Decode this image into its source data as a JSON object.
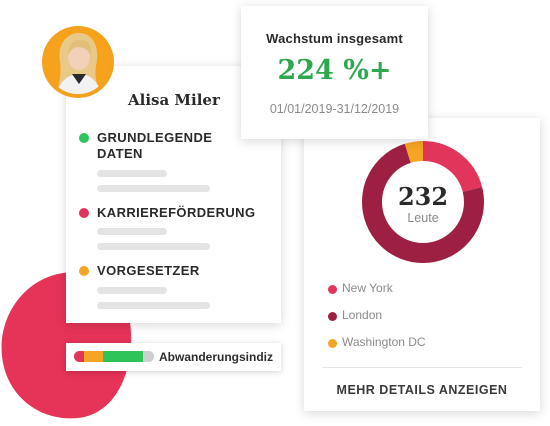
{
  "profile": {
    "name": "Alisa Miler",
    "sections": [
      {
        "title_line1": "GRUNDLEGENDE",
        "title_line2": "DATEN",
        "color": "#2ec45a"
      },
      {
        "title_line1": "KARRIEREFÖRDERUNG",
        "title_line2": "",
        "color": "#e0325a"
      },
      {
        "title_line1": "VORGESETZER",
        "title_line2": "",
        "color": "#f5a524"
      }
    ]
  },
  "growth": {
    "title": "Wachstum insgesamt",
    "value": "224 %+",
    "range": "01/01/2019-31/12/2019"
  },
  "donut": {
    "count": "232",
    "count_label": "Leute",
    "segments": [
      {
        "name": "New York",
        "color": "#e2355c",
        "share": 0.21
      },
      {
        "name": "London",
        "color": "#9d2042",
        "share": 0.74
      },
      {
        "name": "Washington DC",
        "color": "#f5a524",
        "share": 0.05
      }
    ],
    "more_label": "MEHR DETAILS ANZEIGEN"
  },
  "churn": {
    "label": "Abwanderungsindiz",
    "segments": [
      {
        "color": "#e2355c",
        "share": 0.13
      },
      {
        "color": "#f5a524",
        "share": 0.23
      },
      {
        "color": "#2ec45a",
        "share": 0.5
      },
      {
        "color": "#cfcfcf",
        "share": 0.14
      }
    ]
  },
  "colors": {
    "accent_red": "#e2355c",
    "accent_green": "#2ea84e",
    "blob": "#e63358"
  }
}
